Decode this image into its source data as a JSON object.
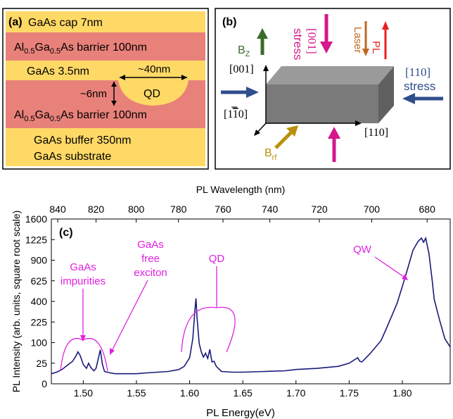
{
  "panel_a": {
    "label": "(a)",
    "layers": [
      {
        "text": "GaAs cap 7nm",
        "color": "#FFD966"
      },
      {
        "text": "Al0.5Ga0.5As barrier 100nm",
        "color": "#E8817A"
      },
      {
        "text": "GaAs 3.5nm",
        "color": "#FFD966"
      },
      {
        "text": "Al0.5Ga0.5As barrier 100nm",
        "color": "#E8817A"
      },
      {
        "text": "GaAs buffer 350nm",
        "color": "#FFD966"
      },
      {
        "text": "GaAs substrate",
        "color": "#FFD966"
      }
    ],
    "qd_label": "QD",
    "width_label": "~40nm",
    "height_label": "~6nm"
  },
  "panel_b": {
    "label": "(b)",
    "bz_label": "B",
    "bz_sub": "Z",
    "stress001_line1": "[001]",
    "stress001_line2": "stress",
    "laser_label": "Laser",
    "pl_label": "PL",
    "stress110_line1": "[110]",
    "stress110_line2": "stress",
    "axis_001": "[001]",
    "axis_1m10_pre": "[1",
    "axis_1m10_bar": "1",
    "axis_1m10_post": "0]",
    "axis_110": "[110]",
    "brf_label": "B",
    "brf_sub": "rf",
    "colors": {
      "green": "#3A6B2A",
      "magenta": "#D6188A",
      "orange": "#C06820",
      "red": "#E8201C",
      "blue": "#2F4E8C",
      "gold": "#B8900A",
      "box": "#7A7A7A"
    }
  },
  "panel_c": {
    "label": "(c)",
    "top_axis_label": "PL Wavelength (nm)",
    "annotations": {
      "gaas_impurities_1": "GaAs",
      "gaas_impurities_2": "impurities",
      "gaas_free_1": "GaAs",
      "gaas_free_2": "free",
      "gaas_free_3": "exciton",
      "qd": "QD",
      "qw": "QW"
    },
    "annotation_color": "#E020E0",
    "line_color": "#1A1A7A"
  },
  "chart_data": {
    "type": "line",
    "xlabel": "PL Energy(eV)",
    "ylabel": "PL Intensity (arb. units, square root scale)",
    "xlim": [
      1.47,
      1.845
    ],
    "ylim": [
      0,
      1600
    ],
    "y_scale": "sqrt",
    "x_ticks": [
      "1.50",
      "1.55",
      "1.60",
      "1.65",
      "1.70",
      "1.75",
      "1.80"
    ],
    "y_ticks": [
      "0",
      "25",
      "100",
      "225",
      "400",
      "625",
      "900",
      "1225",
      "1600"
    ],
    "top_ticks": [
      "840",
      "820",
      "800",
      "780",
      "760",
      "740",
      "720",
      "700",
      "680"
    ],
    "series": [
      {
        "x": [
          1.47,
          1.475,
          1.48,
          1.485,
          1.49,
          1.493,
          1.495,
          1.497,
          1.5,
          1.503,
          1.505,
          1.507,
          1.51,
          1.512,
          1.514,
          1.516,
          1.518,
          1.52,
          1.525,
          1.53,
          1.54,
          1.55,
          1.56,
          1.57,
          1.58,
          1.59,
          1.595,
          1.6,
          1.603,
          1.605,
          1.606,
          1.607,
          1.609,
          1.611,
          1.613,
          1.615,
          1.617,
          1.619,
          1.621,
          1.623,
          1.625,
          1.63,
          1.64,
          1.65,
          1.67,
          1.69,
          1.7,
          1.72,
          1.74,
          1.75,
          1.758,
          1.76,
          1.762,
          1.77,
          1.78,
          1.785,
          1.79,
          1.795,
          1.8,
          1.805,
          1.81,
          1.815,
          1.818,
          1.82,
          1.822,
          1.825,
          1.828,
          1.83,
          1.835,
          1.84,
          1.845
        ],
        "y": [
          6,
          8,
          12,
          20,
          30,
          45,
          60,
          48,
          22,
          14,
          25,
          16,
          10,
          14,
          35,
          68,
          22,
          9,
          7,
          6,
          6,
          6,
          7,
          8,
          9,
          12,
          18,
          40,
          120,
          320,
          430,
          260,
          95,
          60,
          42,
          55,
          38,
          70,
          28,
          30,
          18,
          9,
          8,
          8,
          9,
          10,
          12,
          14,
          18,
          25,
          40,
          30,
          28,
          55,
          110,
          180,
          270,
          380,
          560,
          780,
          1050,
          1200,
          1250,
          1180,
          1250,
          1000,
          640,
          420,
          240,
          120,
          80
        ]
      }
    ]
  }
}
